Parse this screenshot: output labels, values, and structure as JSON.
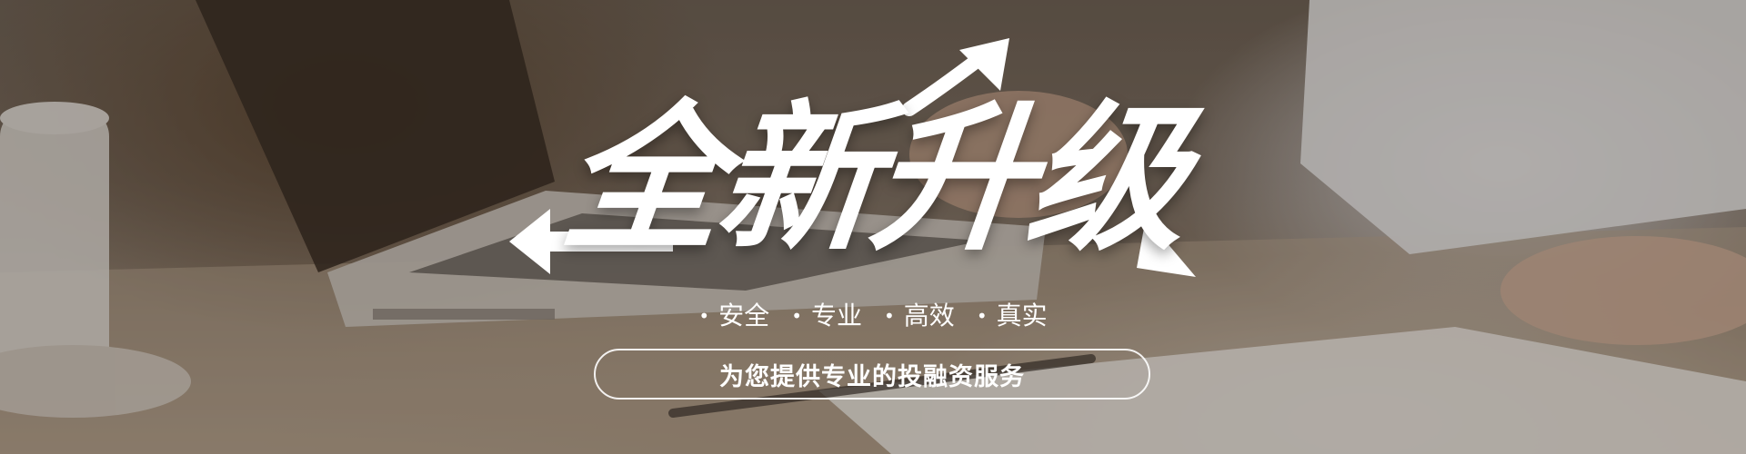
{
  "banner": {
    "headline": "全新升级",
    "features": [
      "安全",
      "专业",
      "高效",
      "真实"
    ],
    "feature_bullet": "•",
    "tagline": "为您提供专业的投融资服务"
  },
  "colors": {
    "text": "#ffffff",
    "overlay": "#14100c"
  }
}
